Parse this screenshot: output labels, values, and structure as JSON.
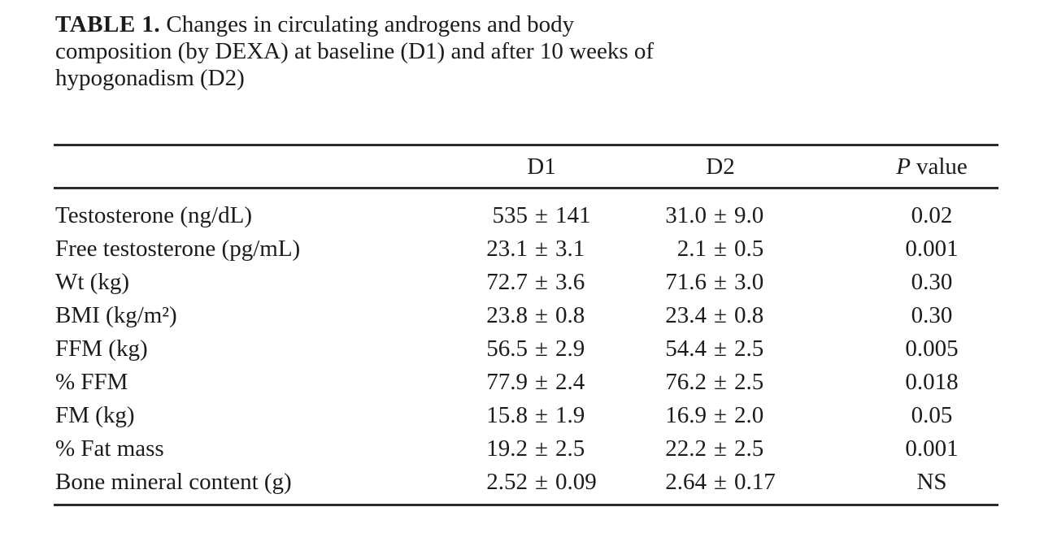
{
  "caption": {
    "label": "TABLE 1.",
    "text": "Changes in circulating androgens and body\ncomposition (by DEXA) at baseline (D1) and after 10 weeks of\nhypogonadism (D2)"
  },
  "table": {
    "pm": "±",
    "headers": {
      "row_label": "",
      "d1": "D1",
      "d2": "D2",
      "p_italic": "P",
      "p_word": "value"
    },
    "rows": [
      {
        "label": "Testosterone (ng/dL)",
        "d1m": "535",
        "d1s": "141",
        "d2m": "31.0",
        "d2s": "9.0",
        "p": "0.02"
      },
      {
        "label": "Free testosterone (pg/mL)",
        "d1m": "23.1",
        "d1s": "3.1",
        "d2m": "2.1",
        "d2s": "0.5",
        "p": "0.001"
      },
      {
        "label": "Wt (kg)",
        "d1m": "72.7",
        "d1s": "3.6",
        "d2m": "71.6",
        "d2s": "3.0",
        "p": "0.30"
      },
      {
        "label": "BMI (kg/m²)",
        "d1m": "23.8",
        "d1s": "0.8",
        "d2m": "23.4",
        "d2s": "0.8",
        "p": "0.30"
      },
      {
        "label": "FFM (kg)",
        "d1m": "56.5",
        "d1s": "2.9",
        "d2m": "54.4",
        "d2s": "2.5",
        "p": "0.005"
      },
      {
        "label": "% FFM",
        "d1m": "77.9",
        "d1s": "2.4",
        "d2m": "76.2",
        "d2s": "2.5",
        "p": "0.018"
      },
      {
        "label": "FM (kg)",
        "d1m": "15.8",
        "d1s": "1.9",
        "d2m": "16.9",
        "d2s": "2.0",
        "p": "0.05"
      },
      {
        "label": "% Fat mass",
        "d1m": "19.2",
        "d1s": "2.5",
        "d2m": "22.2",
        "d2s": "2.5",
        "p": "0.001"
      },
      {
        "label": "Bone mineral content (g)",
        "d1m": "2.52",
        "d1s": "0.09",
        "d2m": "2.64",
        "d2s": "0.17",
        "p": "NS"
      }
    ]
  }
}
